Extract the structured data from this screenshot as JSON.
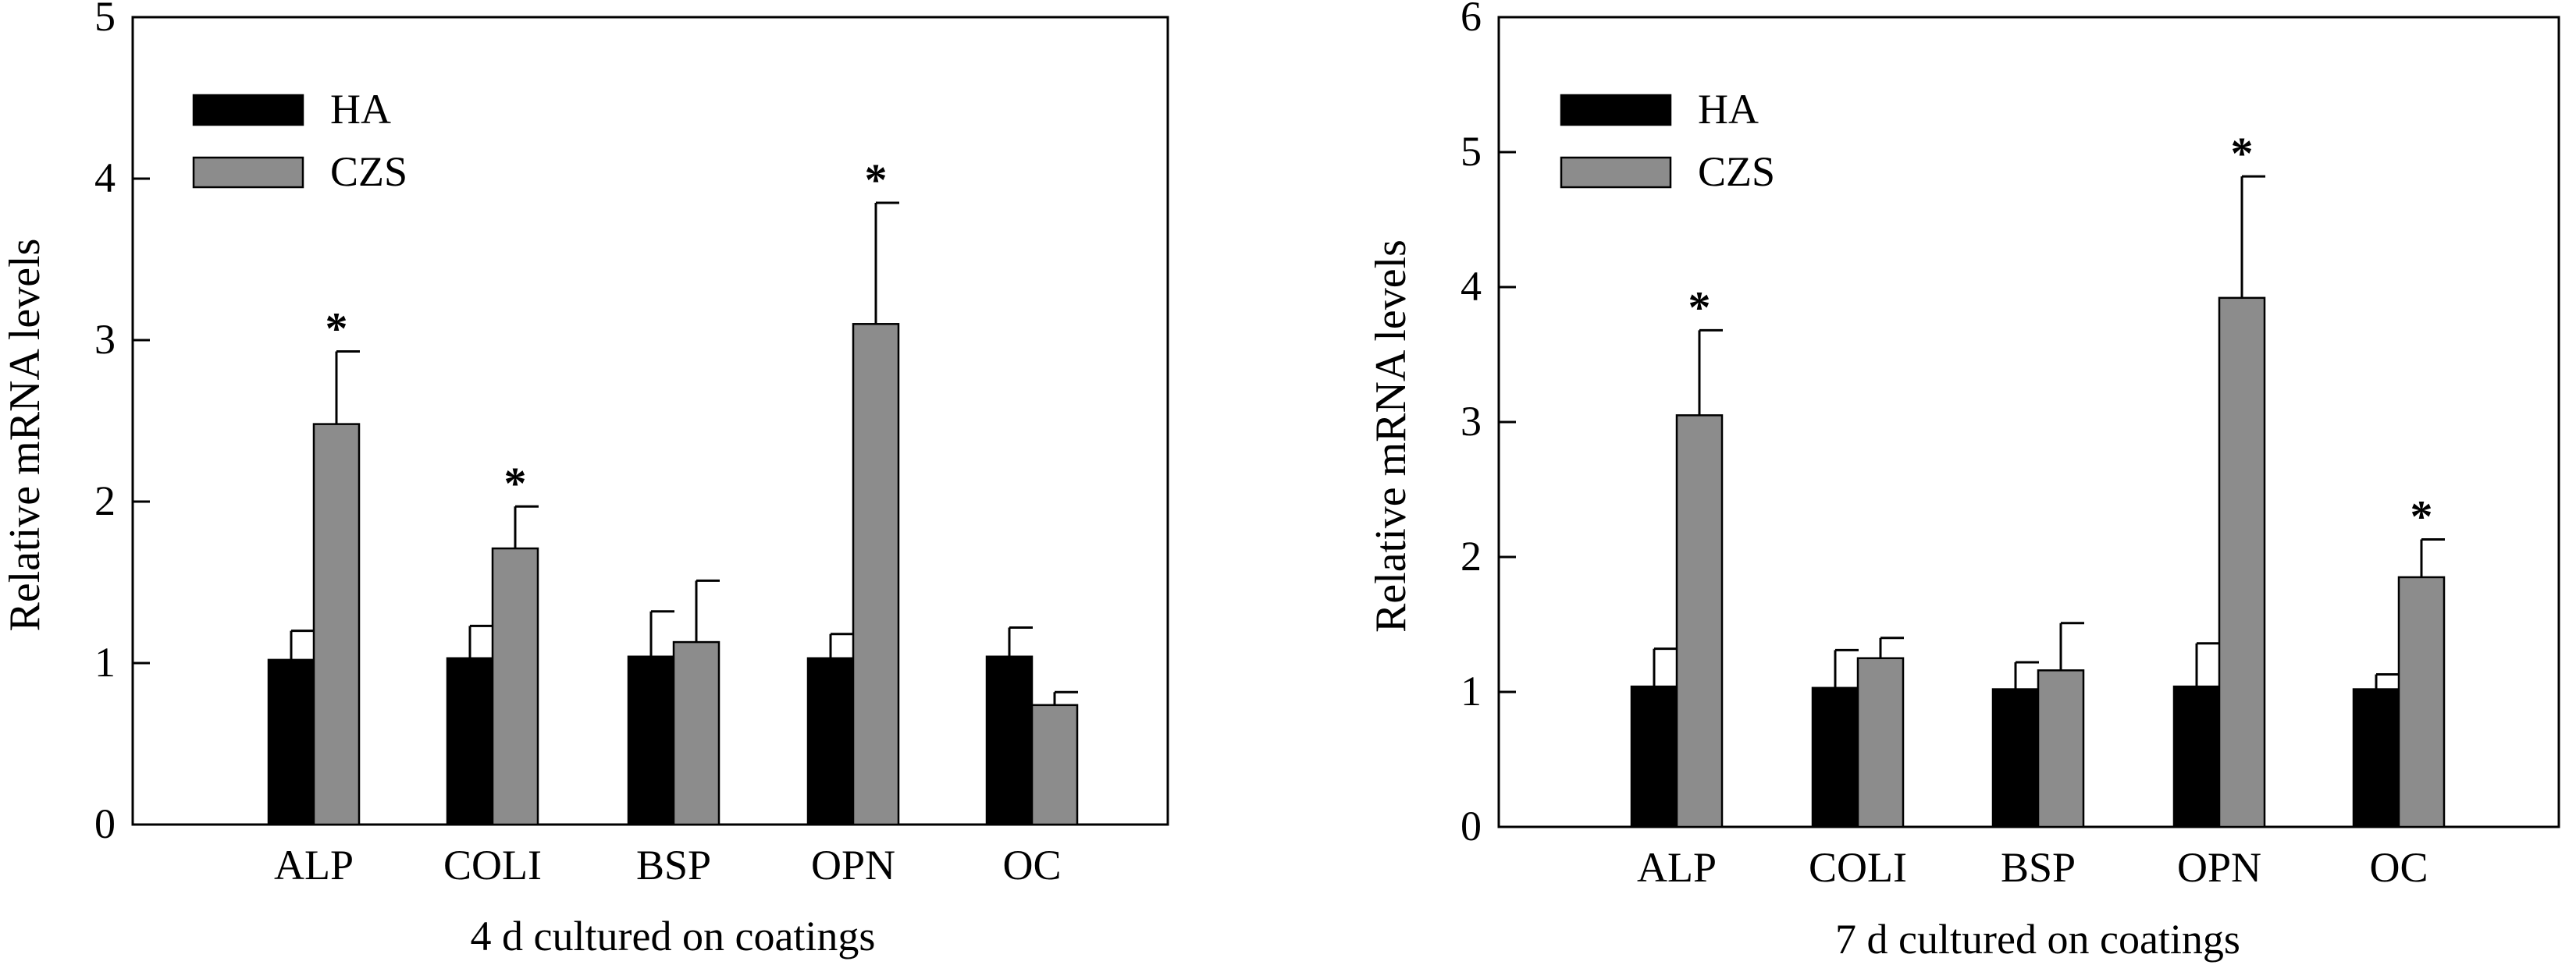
{
  "chart_data": [
    {
      "type": "bar",
      "categories": [
        "ALP",
        "COLI",
        "BSP",
        "OPN",
        "OC"
      ],
      "xlabel": "4 d cultured on coatings",
      "ylabel": "Relative mRNA levels",
      "ylim": [
        0,
        5
      ],
      "yticks": [
        "0",
        "1",
        "2",
        "3",
        "4",
        "5"
      ],
      "legend_position": "top-left",
      "series": [
        {
          "name": "HA",
          "color": "#000000",
          "values": [
            1.02,
            1.03,
            1.04,
            1.03,
            1.04
          ],
          "errors": [
            0.18,
            0.2,
            0.28,
            0.15,
            0.18
          ]
        },
        {
          "name": "CZS",
          "color": "#8c8c8c",
          "values": [
            2.48,
            1.71,
            1.13,
            3.1,
            0.74
          ],
          "errors": [
            0.45,
            0.26,
            0.38,
            0.75,
            0.08
          ]
        }
      ],
      "significance": [
        {
          "category": "ALP",
          "label": "*"
        },
        {
          "category": "COLI",
          "label": "*"
        },
        {
          "category": "OPN",
          "label": "*"
        }
      ]
    },
    {
      "type": "bar",
      "categories": [
        "ALP",
        "COLI",
        "BSP",
        "OPN",
        "OC"
      ],
      "xlabel": "7 d cultured on coatings",
      "ylabel": "Relative mRNA levels",
      "ylim": [
        0,
        6
      ],
      "yticks": [
        "0",
        "1",
        "2",
        "3",
        "4",
        "5",
        "6"
      ],
      "legend_position": "top-left",
      "series": [
        {
          "name": "HA",
          "color": "#000000",
          "values": [
            1.04,
            1.03,
            1.02,
            1.04,
            1.02
          ],
          "errors": [
            0.28,
            0.28,
            0.2,
            0.32,
            0.11
          ]
        },
        {
          "name": "CZS",
          "color": "#8c8c8c",
          "values": [
            3.05,
            1.25,
            1.16,
            3.92,
            1.85
          ],
          "errors": [
            0.63,
            0.15,
            0.35,
            0.9,
            0.28
          ]
        }
      ],
      "significance": [
        {
          "category": "ALP",
          "label": "*"
        },
        {
          "category": "OPN",
          "label": "*"
        },
        {
          "category": "OC",
          "label": "*"
        }
      ]
    }
  ]
}
